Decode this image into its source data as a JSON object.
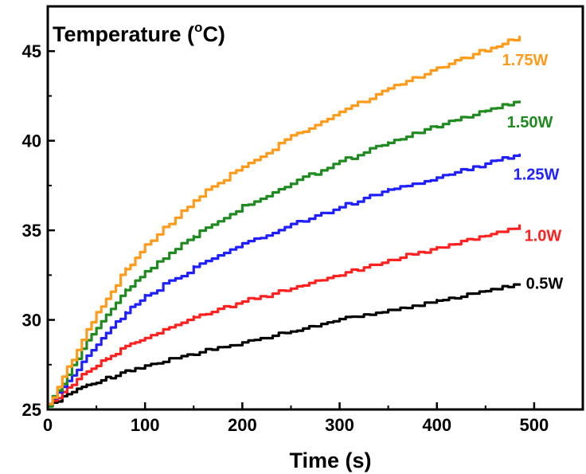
{
  "chart_data": {
    "type": "line",
    "title_parts": {
      "prefix": "Temperature (",
      "superscript": "o",
      "suffix": "C)"
    },
    "xlabel": "Time (s)",
    "xlim": [
      0,
      550
    ],
    "ylim": [
      25,
      47.5
    ],
    "x_ticks": [
      0,
      100,
      200,
      300,
      400,
      500
    ],
    "x_tick_labels": [
      "0",
      "100",
      "200",
      "300",
      "400",
      "500"
    ],
    "y_ticks": [
      25,
      30,
      35,
      40,
      45
    ],
    "y_tick_labels": [
      "25",
      "30",
      "35",
      "40",
      "45"
    ],
    "grid": false,
    "x": [
      0,
      20,
      40,
      60,
      80,
      100,
      150,
      200,
      250,
      300,
      350,
      400,
      450,
      485
    ],
    "series": [
      {
        "name": "0.5W",
        "color": "#000000",
        "values": [
          25.3,
          25.9,
          26.4,
          26.8,
          27.2,
          27.5,
          28.2,
          28.8,
          29.4,
          30.1,
          30.6,
          31.1,
          31.7,
          32.1
        ]
      },
      {
        "name": "1.0W",
        "color": "#ff2020",
        "values": [
          25.3,
          26.3,
          27.2,
          27.9,
          28.6,
          29.1,
          30.2,
          31.1,
          31.8,
          32.6,
          33.4,
          34.1,
          34.8,
          35.3
        ]
      },
      {
        "name": "1.25W",
        "color": "#1f1fff",
        "values": [
          25.3,
          26.6,
          28.1,
          29.4,
          30.5,
          31.4,
          33.0,
          34.3,
          35.4,
          36.4,
          37.3,
          38.0,
          38.8,
          39.3
        ]
      },
      {
        "name": "1.50W",
        "color": "#1f8a1f",
        "values": [
          25.3,
          27.0,
          28.9,
          30.4,
          31.7,
          32.8,
          34.8,
          36.4,
          37.7,
          38.9,
          40.0,
          40.9,
          41.8,
          42.3
        ]
      },
      {
        "name": "1.75W",
        "color": "#ff9a1a",
        "values": [
          25.3,
          27.4,
          29.5,
          31.3,
          32.9,
          34.2,
          36.8,
          38.7,
          40.3,
          41.7,
          43.0,
          44.1,
          45.2,
          45.8
        ]
      }
    ]
  }
}
